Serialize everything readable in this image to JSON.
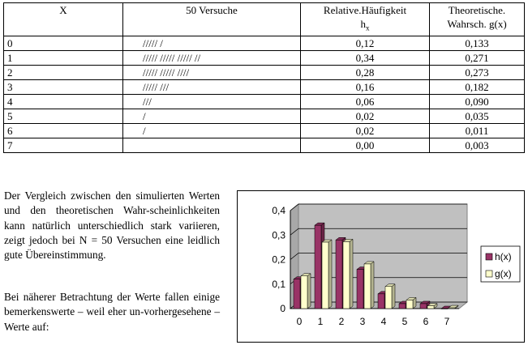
{
  "table": {
    "headers": {
      "x": "X",
      "trials": "50 Versuche",
      "relative_line1": "Relative.Häufigkeit",
      "relative_line2_main": "h",
      "relative_line2_sub": "x",
      "theoretical_line1": "Theoretische.",
      "theoretical_line2": "Wahrsch. g(x)"
    },
    "rows": [
      {
        "x": "0",
        "tally": "///// /",
        "h": "0,12",
        "g": "0,133"
      },
      {
        "x": "1",
        "tally": "///// ///// ///// //",
        "h": "0,34",
        "g": "0,271"
      },
      {
        "x": "2",
        "tally": "///// ///// ////",
        "h": "0,28",
        "g": "0,273"
      },
      {
        "x": "3",
        "tally": "///// ///",
        "h": "0,16",
        "g": "0,182"
      },
      {
        "x": "4",
        "tally": "///",
        "h": "0,06",
        "g": "0,090"
      },
      {
        "x": "5",
        "tally": "/",
        "h": "0,02",
        "g": "0,035"
      },
      {
        "x": "6",
        "tally": "/",
        "h": "0,02",
        "g": "0,011"
      },
      {
        "x": "7",
        "tally": "",
        "h": "0,00",
        "g": "0,003"
      }
    ]
  },
  "text": {
    "paragraph1": "Der Vergleich zwischen den simulierten Werten und den theoretischen Wahr-scheinlichkeiten kann natürlich unterschiedlich stark variieren, zeigt jedoch bei N = 50 Versuchen eine leidlich gute Übereinstimmung.",
    "paragraph2": "Bei näherer Betrachtung der Werte fallen einige bemerkenswerte – weil eher un-vorhergesehene – Werte auf:"
  },
  "chart_data": {
    "type": "bar",
    "categories": [
      "0",
      "1",
      "2",
      "3",
      "4",
      "5",
      "6",
      "7"
    ],
    "series": [
      {
        "name": "h(x)",
        "values": [
          0.12,
          0.34,
          0.28,
          0.16,
          0.06,
          0.02,
          0.02,
          0.0
        ],
        "color": "#993366"
      },
      {
        "name": "g(x)",
        "values": [
          0.133,
          0.271,
          0.273,
          0.182,
          0.09,
          0.035,
          0.011,
          0.003
        ],
        "color": "#ffffcc"
      }
    ],
    "ylim": [
      0,
      0.4
    ],
    "yticks": [
      "0",
      "0,1",
      "0,2",
      "0,3",
      "0,4"
    ],
    "title": "",
    "xlabel": "",
    "ylabel": "",
    "style": "3d",
    "plot_background": "#c0c0c0",
    "legend_position": "right"
  }
}
